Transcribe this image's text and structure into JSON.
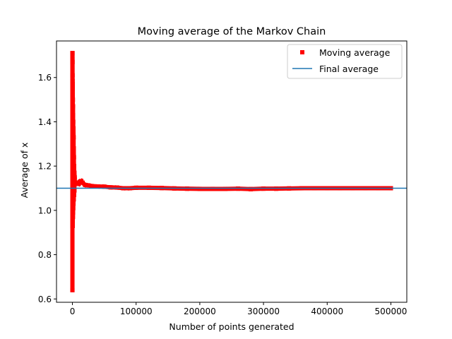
{
  "chart_data": {
    "type": "scatter",
    "title": "Moving average of the Markov Chain",
    "xlabel": "Number of points generated",
    "ylabel": "Average of x",
    "xlim": [
      -25000,
      525000
    ],
    "ylim": [
      0.585,
      1.765
    ],
    "xticks": [
      {
        "value": 0,
        "label": "0"
      },
      {
        "value": 100000,
        "label": "100000"
      },
      {
        "value": 200000,
        "label": "200000"
      },
      {
        "value": 300000,
        "label": "300000"
      },
      {
        "value": 400000,
        "label": "400000"
      },
      {
        "value": 500000,
        "label": "500000"
      }
    ],
    "yticks": [
      {
        "value": 0.6,
        "label": "0.6"
      },
      {
        "value": 0.8,
        "label": "0.8"
      },
      {
        "value": 1.0,
        "label": "1.0"
      },
      {
        "value": 1.2,
        "label": "1.2"
      },
      {
        "value": 1.4,
        "label": "1.4"
      },
      {
        "value": 1.6,
        "label": "1.6"
      }
    ],
    "grid": false,
    "legend_position": "top-right",
    "series": [
      {
        "name": "Moving average",
        "kind": "square-markers",
        "color": "#ff0000",
        "points": [
          [
            0,
            0.64
          ],
          [
            50,
            1.71
          ],
          [
            100,
            1.67
          ],
          [
            150,
            1.61
          ],
          [
            200,
            1.585
          ],
          [
            300,
            1.57
          ],
          [
            400,
            1.55
          ],
          [
            500,
            1.52
          ],
          [
            600,
            1.5
          ],
          [
            800,
            1.47
          ],
          [
            1000,
            1.43
          ],
          [
            1200,
            1.4
          ],
          [
            1500,
            1.37
          ],
          [
            1800,
            1.33
          ],
          [
            2000,
            1.28
          ],
          [
            2300,
            1.24
          ],
          [
            2600,
            1.2
          ],
          [
            3000,
            1.17
          ],
          [
            3500,
            1.15
          ],
          [
            300,
            0.93
          ],
          [
            500,
            0.95
          ],
          [
            700,
            0.97
          ],
          [
            900,
            0.99
          ],
          [
            1200,
            1.01
          ],
          [
            1500,
            1.03
          ],
          [
            2000,
            1.05
          ],
          [
            2500,
            1.07
          ],
          [
            3000,
            1.09
          ],
          [
            4000,
            1.12
          ],
          [
            5000,
            1.125
          ],
          [
            6000,
            1.12
          ],
          [
            8000,
            1.122
          ],
          [
            10000,
            1.12
          ],
          [
            12000,
            1.13
          ],
          [
            14000,
            1.132
          ],
          [
            16000,
            1.125
          ],
          [
            20000,
            1.115
          ],
          [
            25000,
            1.113
          ],
          [
            30000,
            1.11
          ],
          [
            40000,
            1.108
          ],
          [
            50000,
            1.107
          ],
          [
            60000,
            1.104
          ],
          [
            70000,
            1.103
          ],
          [
            80000,
            1.1
          ],
          [
            90000,
            1.1
          ],
          [
            100000,
            1.102
          ],
          [
            120000,
            1.102
          ],
          [
            140000,
            1.101
          ],
          [
            160000,
            1.099
          ],
          [
            180000,
            1.098
          ],
          [
            200000,
            1.097
          ],
          [
            220000,
            1.097
          ],
          [
            240000,
            1.097
          ],
          [
            260000,
            1.098
          ],
          [
            280000,
            1.096
          ],
          [
            300000,
            1.098
          ],
          [
            320000,
            1.098
          ],
          [
            340000,
            1.099
          ],
          [
            360000,
            1.1
          ],
          [
            380000,
            1.1
          ],
          [
            400000,
            1.1
          ],
          [
            420000,
            1.1
          ],
          [
            440000,
            1.1
          ],
          [
            460000,
            1.1
          ],
          [
            480000,
            1.1
          ],
          [
            500000,
            1.1
          ]
        ]
      },
      {
        "name": "Final average",
        "kind": "horizontal-line",
        "color": "#1f77b4",
        "y": 1.1
      }
    ]
  }
}
